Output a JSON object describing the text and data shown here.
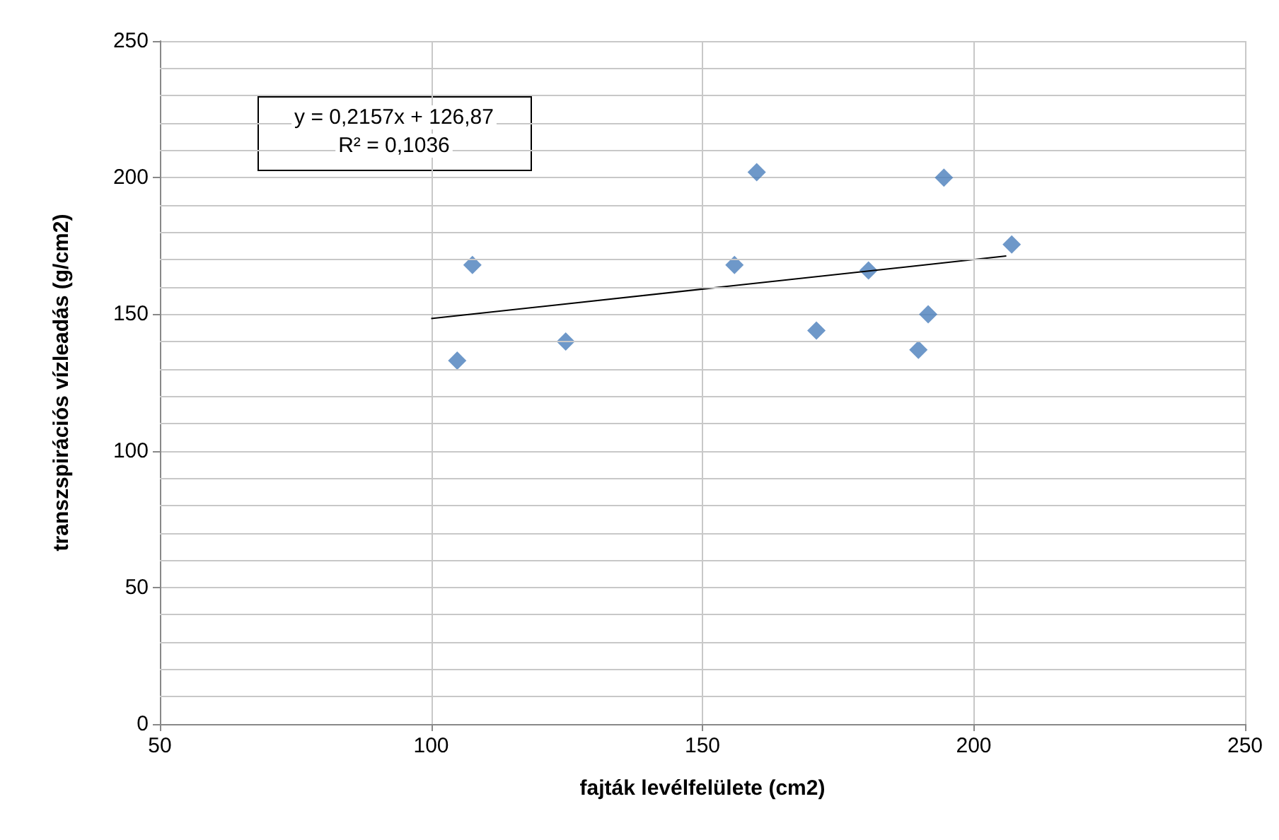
{
  "chart_data": {
    "type": "scatter",
    "xlabel": "fajták levélfelülete (cm2)",
    "ylabel": "transzspirációs vízleadás (g/cm2)",
    "annotations": [
      "y = 0,2157x + 126,87",
      "R² = 0,1036"
    ],
    "series": [
      {
        "color": "#4a7ebb",
        "marker": "diamond",
        "x": [
          104.8,
          107.6,
          124.8,
          155.9,
          160,
          171,
          180.6,
          189.8,
          191.6,
          194.5,
          207
        ],
        "values": [
          133,
          168,
          140,
          168,
          202,
          144,
          166,
          137,
          150,
          200,
          175.5
        ]
      },
      {
        "type": "line",
        "color": "#000000",
        "marker": "none",
        "x": [
          100,
          206
        ],
        "values": [
          148.4,
          171.3
        ]
      }
    ],
    "xlim": [
      50,
      250
    ],
    "xticks": [
      50,
      100,
      150,
      200,
      250
    ],
    "ylim": [
      0,
      250
    ],
    "yticks": [
      0,
      {
        "value": 10,
        "label": null
      },
      {
        "value": 20,
        "label": null
      },
      {
        "value": 30,
        "label": null
      },
      {
        "value": 40,
        "label": null
      },
      50,
      {
        "value": 60,
        "label": null
      },
      {
        "value": 70,
        "label": null
      },
      {
        "value": 80,
        "label": null
      },
      {
        "value": 90,
        "label": null
      },
      100,
      {
        "value": 110,
        "label": null
      },
      {
        "value": 120,
        "label": null
      },
      {
        "value": 130,
        "label": null
      },
      {
        "value": 140,
        "label": null
      },
      150,
      {
        "value": 160,
        "label": null
      },
      {
        "value": 170,
        "label": null
      },
      {
        "value": 180,
        "label": null
      },
      {
        "value": 190,
        "label": null
      },
      200,
      {
        "value": 210,
        "label": null
      },
      {
        "value": 220,
        "label": null
      },
      {
        "value": 230,
        "label": null
      },
      {
        "value": 240,
        "label": null
      },
      250
    ],
    "grid": true
  }
}
